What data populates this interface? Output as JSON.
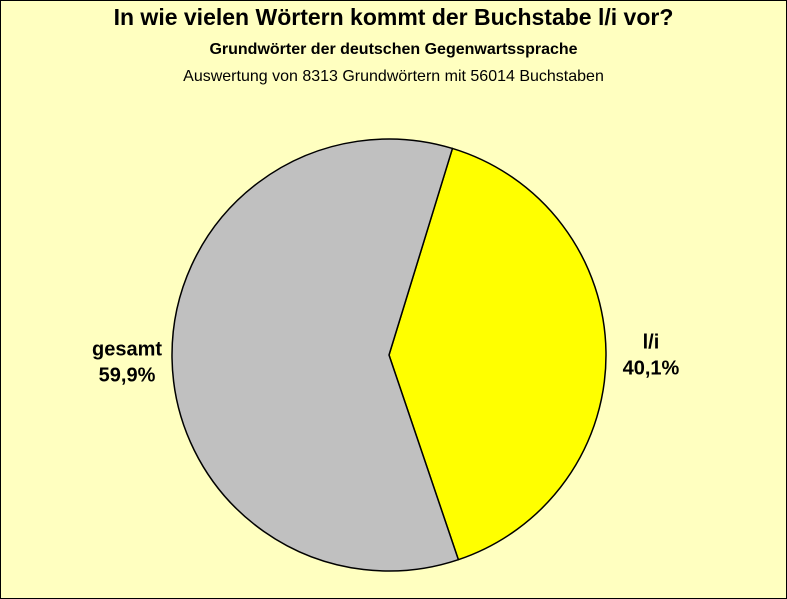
{
  "chart_data": {
    "type": "pie",
    "title": "In wie vielen Wörtern kommt der Buchstabe l/i vor?",
    "subtitle": "Grundwörter der deutschen Gegenwartssprache",
    "subtitle2": "Auswertung von 8313 Grundwörtern mit 56014 Buchstaben",
    "slices": [
      {
        "name": "l/i",
        "value": 40.1,
        "label": "40,1%",
        "color": "#ffff00"
      },
      {
        "name": "gesamt",
        "value": 59.9,
        "label": "59,9%",
        "color": "#c0c0c0"
      }
    ],
    "background": "#ffffc0"
  }
}
